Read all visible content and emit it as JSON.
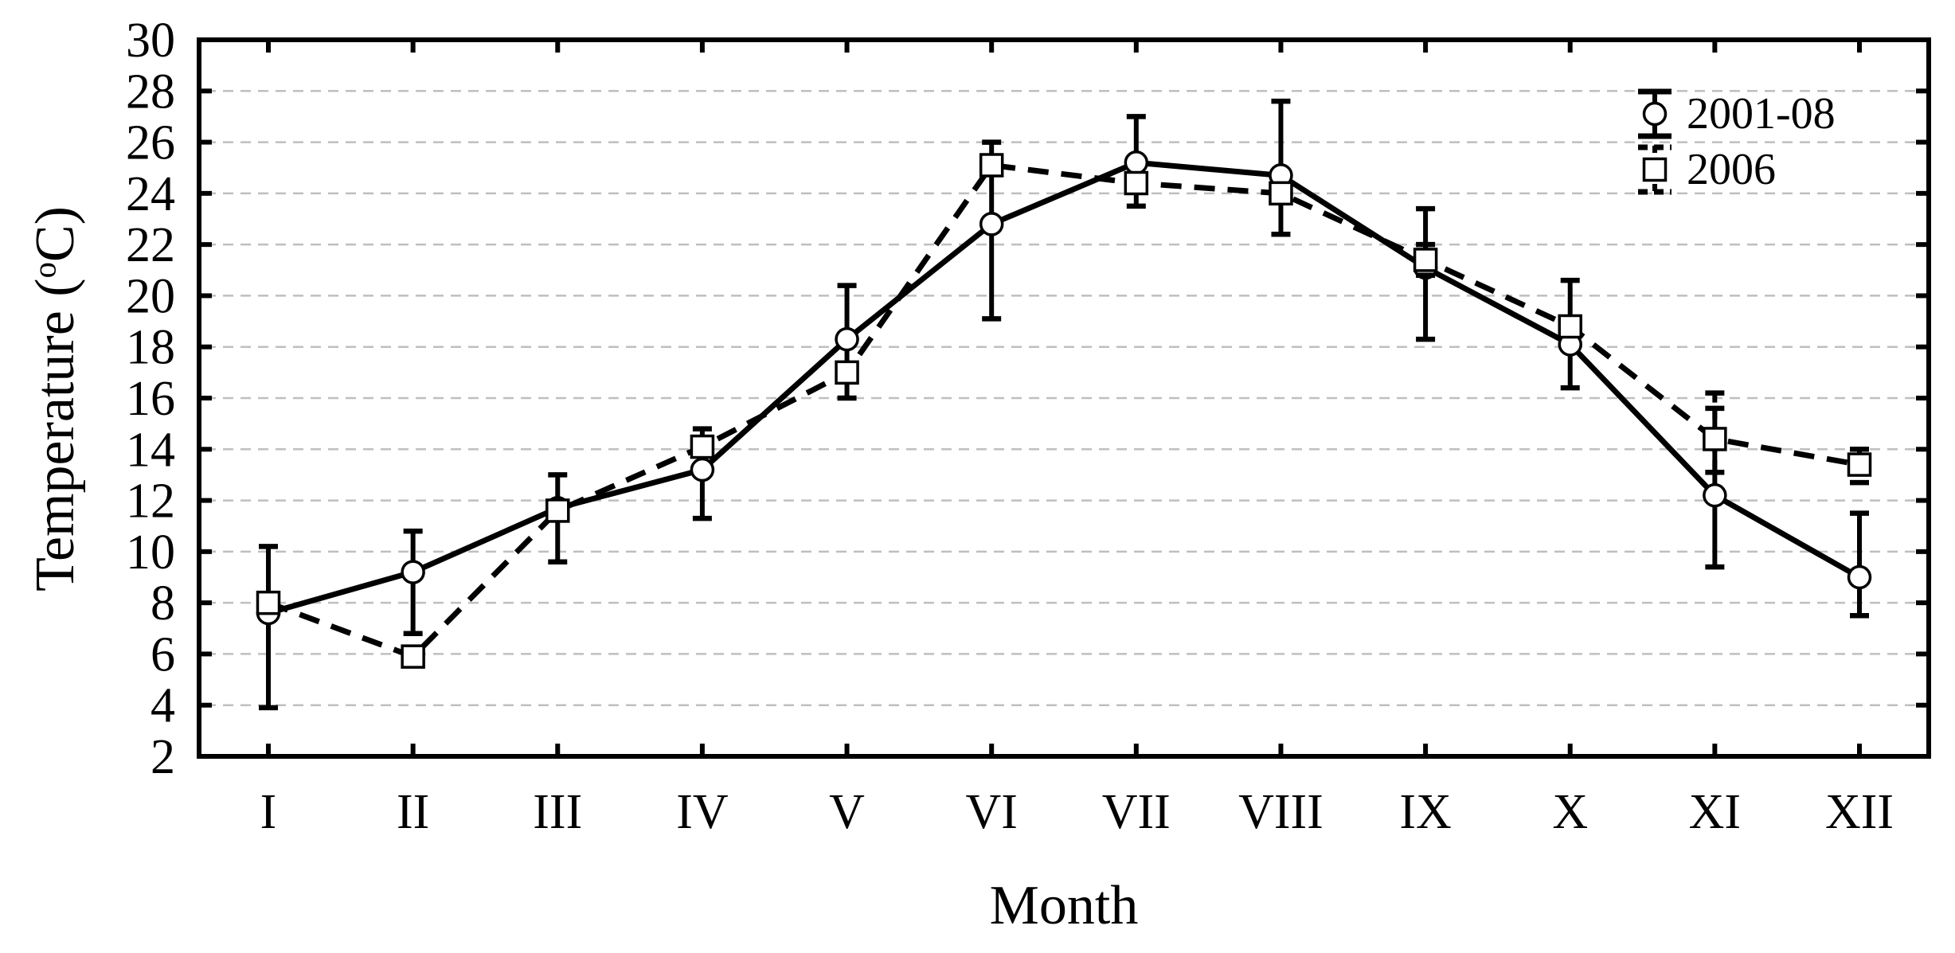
{
  "figure": {
    "background": "#ffffff",
    "axis_color": "#000000",
    "grid_color": "#bfbfbf",
    "marker_fill": "#ffffff"
  },
  "chart_data": {
    "type": "line",
    "title": "",
    "xlabel": "Month",
    "ylabel": "Temperature (°C)",
    "ylabel_parts": {
      "pre": "Temperature (",
      "sup": "o",
      "post": "C)"
    },
    "x_categories": [
      "I",
      "II",
      "III",
      "IV",
      "V",
      "VI",
      "VII",
      "VIII",
      "IX",
      "X",
      "XI",
      "XII"
    ],
    "ylim": [
      2,
      30
    ],
    "yticks": [
      2,
      4,
      6,
      8,
      10,
      12,
      14,
      16,
      18,
      20,
      22,
      24,
      26,
      28,
      30
    ],
    "grid": "horizontal-dashed",
    "legend_position": "top-right",
    "series": [
      {
        "name": "2001-08",
        "marker": "circle",
        "line": "solid",
        "color": "#000000",
        "values": [
          7.6,
          9.2,
          11.7,
          13.2,
          18.3,
          22.8,
          25.2,
          24.7,
          21.1,
          18.1,
          12.2,
          9.0
        ],
        "err_low": [
          3.9,
          6.8,
          9.6,
          11.3,
          16.0,
          19.1,
          23.5,
          22.4,
          18.3,
          16.4,
          9.4,
          7.5
        ],
        "err_high": [
          10.2,
          10.8,
          13.0,
          14.8,
          20.4,
          26.0,
          27.0,
          27.6,
          23.4,
          20.6,
          15.6,
          11.5
        ]
      },
      {
        "name": "2006",
        "marker": "square",
        "line": "dashed",
        "color": "#000000",
        "values": [
          8.0,
          5.9,
          11.6,
          14.1,
          17.0,
          25.1,
          24.4,
          24.0,
          21.4,
          18.8,
          14.4,
          13.4
        ],
        "err_low": [
          null,
          null,
          null,
          null,
          null,
          null,
          null,
          null,
          20.8,
          null,
          13.1,
          12.7
        ],
        "err_high": [
          null,
          null,
          null,
          null,
          null,
          null,
          null,
          null,
          22.0,
          null,
          16.2,
          14.0
        ]
      }
    ]
  }
}
